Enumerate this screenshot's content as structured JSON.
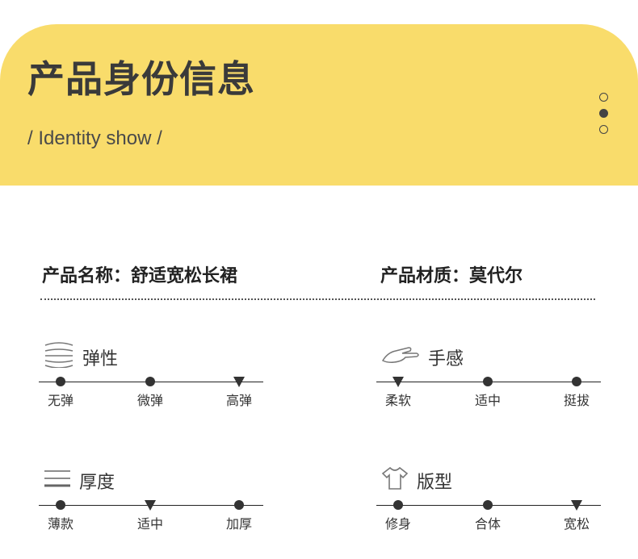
{
  "header": {
    "title": "产品身份信息",
    "subtitle": "/ Identity show /",
    "pager_active": 1,
    "bg_color": "#f9dc6b"
  },
  "info": {
    "name": "产品名称：舒适宽松长裙",
    "material": "产品材质：莫代尔"
  },
  "sections": [
    {
      "title": "弹性",
      "icon": "elastic-waves-icon",
      "options": [
        "无弹",
        "微弹",
        "高弹"
      ],
      "selected": 2
    },
    {
      "title": "手感",
      "icon": "hand-icon",
      "options": [
        "柔软",
        "适中",
        "挺拔"
      ],
      "selected": 0
    },
    {
      "title": "厚度",
      "icon": "thickness-lines-icon",
      "options": [
        "薄款",
        "适中",
        "加厚"
      ],
      "selected": 1
    },
    {
      "title": "版型",
      "icon": "tshirt-icon",
      "options": [
        "修身",
        "合体",
        "宽松"
      ],
      "selected": 2
    }
  ]
}
